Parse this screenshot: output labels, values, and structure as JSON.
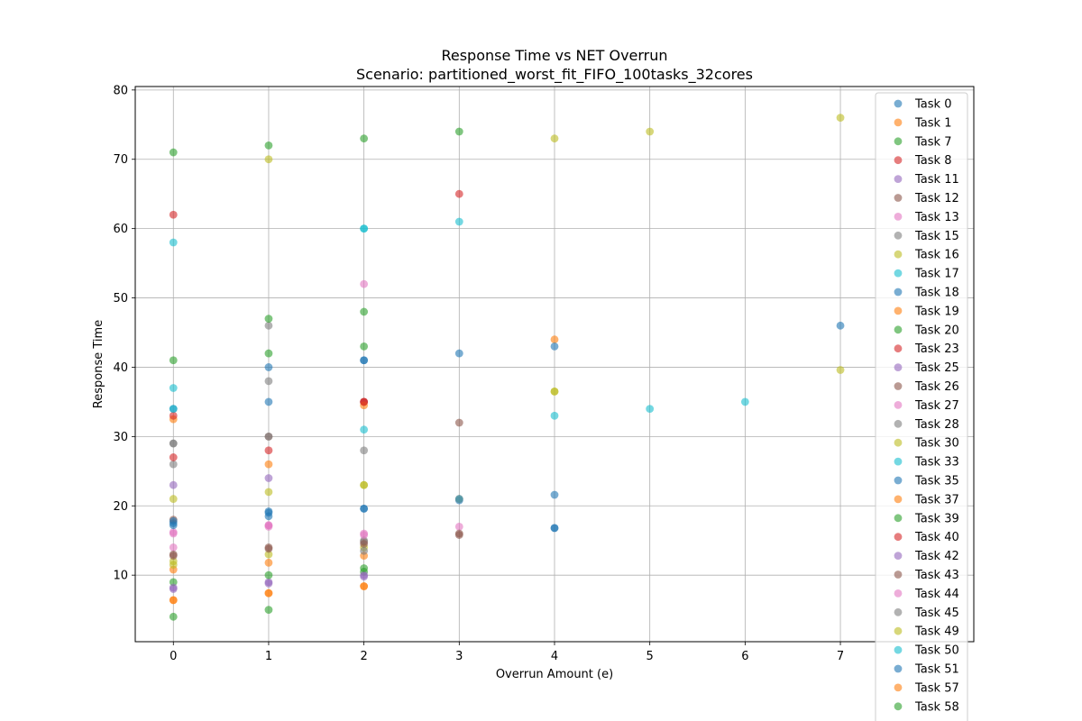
{
  "chart_data": {
    "type": "scatter",
    "title": "Response Time vs NET Overrun",
    "subtitle": "Scenario: partitioned_worst_fit_FIFO_100tasks_32cores",
    "xlabel": "Overrun Amount (e)",
    "ylabel": "Response Time",
    "xlim": [
      -0.4,
      8.4
    ],
    "ylim": [
      0.4,
      80.5
    ],
    "xticks": [
      0,
      1,
      2,
      3,
      4,
      5,
      6,
      7
    ],
    "yticks": [
      10,
      20,
      30,
      40,
      50,
      60,
      70,
      80
    ],
    "grid": true,
    "legend_position": "upper-right",
    "series": [
      {
        "name": "Task 0",
        "color": "#1f77b4",
        "points": [
          [
            0,
            17.5
          ],
          [
            1,
            18.5
          ],
          [
            2,
            19.6
          ],
          [
            4,
            21.6
          ],
          [
            1,
            40
          ]
        ]
      },
      {
        "name": "Task 1",
        "color": "#ff7f0e",
        "points": [
          [
            0,
            6.4
          ],
          [
            1,
            7.4
          ],
          [
            2,
            8.4
          ],
          [
            4,
            44
          ]
        ]
      },
      {
        "name": "Task 7",
        "color": "#2ca02c",
        "points": [
          [
            0,
            4
          ],
          [
            1,
            5
          ],
          [
            2,
            10.5
          ],
          [
            3,
            74
          ]
        ]
      },
      {
        "name": "Task 8",
        "color": "#d62728",
        "points": [
          [
            0,
            62
          ],
          [
            3,
            65
          ]
        ]
      },
      {
        "name": "Task 11",
        "color": "#9467bd",
        "points": [
          [
            0,
            8
          ],
          [
            1,
            9
          ],
          [
            2,
            10
          ]
        ]
      },
      {
        "name": "Task 12",
        "color": "#8c564b",
        "points": [
          [
            0,
            18
          ],
          [
            1,
            30
          ],
          [
            2,
            35
          ],
          [
            3,
            32
          ]
        ]
      },
      {
        "name": "Task 13",
        "color": "#e377c2",
        "points": [
          [
            0,
            14
          ],
          [
            1,
            17
          ],
          [
            2,
            16
          ],
          [
            3,
            17
          ]
        ]
      },
      {
        "name": "Task 15",
        "color": "#7f7f7f",
        "points": [
          [
            0,
            26
          ],
          [
            1,
            46
          ],
          [
            2,
            28
          ]
        ]
      },
      {
        "name": "Task 16",
        "color": "#bcbd22",
        "points": [
          [
            0,
            12
          ],
          [
            1,
            13
          ],
          [
            2,
            14
          ],
          [
            4,
            73
          ],
          [
            5,
            74
          ],
          [
            7,
            76
          ]
        ]
      },
      {
        "name": "Task 17",
        "color": "#17becf",
        "points": [
          [
            0,
            58
          ],
          [
            2,
            60
          ],
          [
            3,
            61
          ]
        ]
      },
      {
        "name": "Task 18",
        "color": "#1f77b4",
        "points": [
          [
            0,
            34
          ],
          [
            1,
            35
          ],
          [
            2,
            41
          ],
          [
            3,
            42
          ],
          [
            4,
            43
          ],
          [
            7,
            46
          ]
        ]
      },
      {
        "name": "Task 19",
        "color": "#ff7f0e",
        "points": [
          [
            0,
            10.8
          ],
          [
            1,
            11.8
          ],
          [
            2,
            12.8
          ]
        ]
      },
      {
        "name": "Task 20",
        "color": "#2ca02c",
        "points": [
          [
            0,
            41
          ],
          [
            1,
            42
          ],
          [
            2,
            43
          ]
        ]
      },
      {
        "name": "Task 23",
        "color": "#d62728",
        "points": [
          [
            0,
            27
          ],
          [
            1,
            28
          ],
          [
            2,
            35
          ]
        ]
      },
      {
        "name": "Task 25",
        "color": "#9467bd",
        "points": [
          [
            0,
            23
          ],
          [
            1,
            24
          ]
        ]
      },
      {
        "name": "Task 26",
        "color": "#8c564b",
        "points": [
          [
            0,
            12.8
          ],
          [
            1,
            14
          ],
          [
            2,
            14.8
          ],
          [
            3,
            15.8
          ]
        ]
      },
      {
        "name": "Task 27",
        "color": "#e377c2",
        "points": [
          [
            0,
            16
          ],
          [
            1,
            17.2
          ],
          [
            2,
            52
          ]
        ]
      },
      {
        "name": "Task 28",
        "color": "#7f7f7f",
        "points": [
          [
            0,
            29
          ],
          [
            1,
            30
          ],
          [
            2,
            15
          ]
        ]
      },
      {
        "name": "Task 30",
        "color": "#bcbd22",
        "points": [
          [
            0,
            21
          ],
          [
            1,
            22
          ],
          [
            2,
            23
          ],
          [
            4,
            36.5
          ],
          [
            7,
            39.6
          ]
        ]
      },
      {
        "name": "Task 33",
        "color": "#17becf",
        "points": [
          [
            0,
            37
          ],
          [
            2,
            31
          ],
          [
            4,
            33
          ],
          [
            5,
            34
          ],
          [
            6,
            35
          ]
        ]
      },
      {
        "name": "Task 35",
        "color": "#1f77b4",
        "points": [
          [
            0,
            17.8
          ],
          [
            1,
            19
          ],
          [
            2,
            19.6
          ],
          [
            3,
            20.8
          ],
          [
            4,
            16.8
          ]
        ]
      },
      {
        "name": "Task 37",
        "color": "#ff7f0e",
        "points": [
          [
            0,
            32.5
          ],
          [
            1,
            26
          ],
          [
            2,
            34.5
          ]
        ]
      },
      {
        "name": "Task 39",
        "color": "#2ca02c",
        "points": [
          [
            0,
            9
          ],
          [
            1,
            10
          ],
          [
            2,
            11
          ]
        ]
      },
      {
        "name": "Task 40",
        "color": "#d62728",
        "points": [
          [
            0,
            33
          ],
          [
            2,
            35
          ],
          [
            3,
            21
          ]
        ]
      },
      {
        "name": "Task 42",
        "color": "#9467bd",
        "points": [
          [
            0,
            8.2
          ],
          [
            1,
            8.8
          ],
          [
            2,
            9.8
          ]
        ]
      },
      {
        "name": "Task 43",
        "color": "#8c564b",
        "points": [
          [
            0,
            13
          ],
          [
            1,
            13.8
          ],
          [
            2,
            14.5
          ],
          [
            3,
            16
          ]
        ]
      },
      {
        "name": "Task 44",
        "color": "#e377c2",
        "points": [
          [
            0,
            16.2
          ],
          [
            1,
            17.2
          ],
          [
            2,
            15.8
          ]
        ]
      },
      {
        "name": "Task 45",
        "color": "#7f7f7f",
        "points": [
          [
            0,
            29
          ],
          [
            1,
            38
          ],
          [
            2,
            13.5
          ]
        ]
      },
      {
        "name": "Task 49",
        "color": "#bcbd22",
        "points": [
          [
            0,
            11.5
          ],
          [
            1,
            70
          ],
          [
            2,
            23
          ],
          [
            4,
            36.5
          ]
        ]
      },
      {
        "name": "Task 50",
        "color": "#17becf",
        "points": [
          [
            0,
            34
          ],
          [
            2,
            60
          ],
          [
            3,
            21
          ]
        ]
      },
      {
        "name": "Task 51",
        "color": "#1f77b4",
        "points": [
          [
            0,
            17.2
          ],
          [
            1,
            19.2
          ],
          [
            2,
            41
          ],
          [
            4,
            16.8
          ]
        ]
      },
      {
        "name": "Task 57",
        "color": "#ff7f0e",
        "points": [
          [
            0,
            6.4
          ],
          [
            1,
            7.4
          ],
          [
            2,
            8.4
          ]
        ]
      },
      {
        "name": "Task 58",
        "color": "#2ca02c",
        "points": [
          [
            0,
            71
          ],
          [
            1,
            72
          ],
          [
            2,
            73
          ],
          [
            1,
            47
          ],
          [
            2,
            48
          ]
        ]
      }
    ]
  }
}
